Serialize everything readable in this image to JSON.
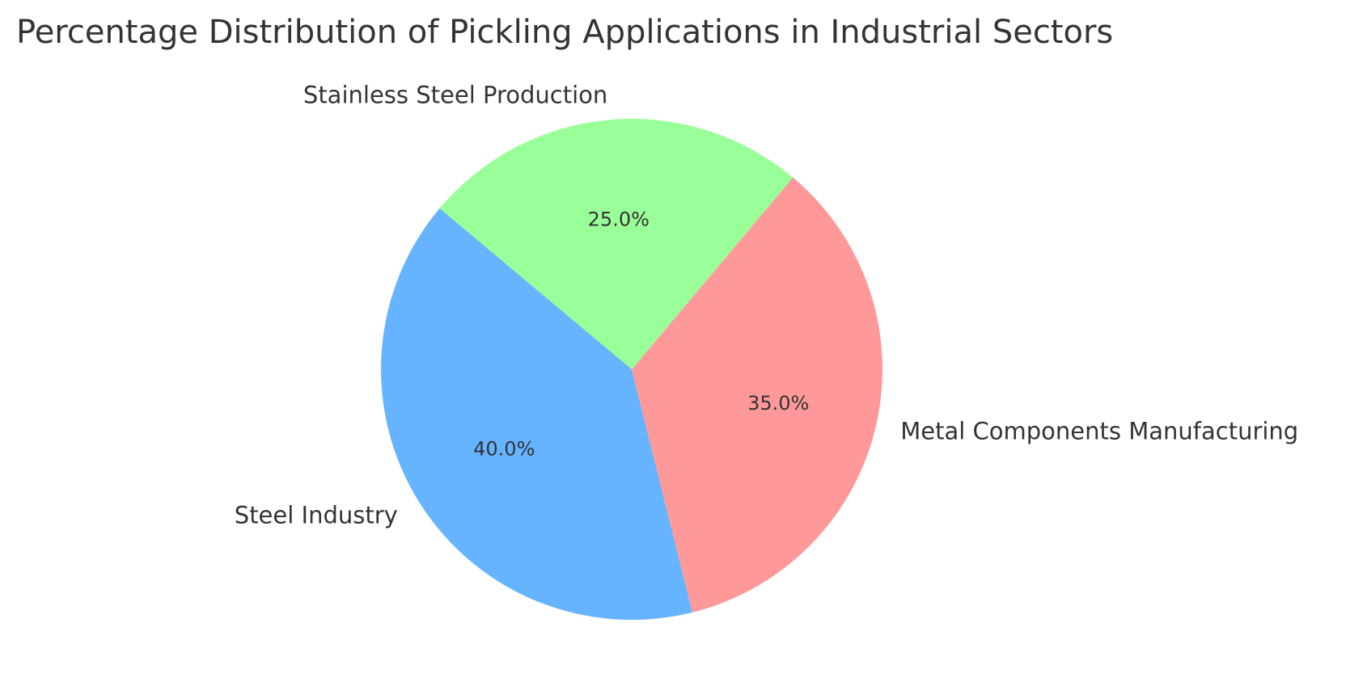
{
  "chart_data": {
    "type": "pie",
    "title": "Percentage Distribution of Pickling Applications in Industrial Sectors",
    "categories": [
      "Steel Industry",
      "Metal Components Manufacturing",
      "Stainless Steel Production"
    ],
    "values": [
      40.0,
      35.0,
      25.0
    ],
    "percent_labels": [
      "40.0%",
      "35.0%",
      "25.0%"
    ],
    "colors": [
      "#66b3ff",
      "#ff9999",
      "#99ff99"
    ],
    "start_angle_deg": 140,
    "direction": "counterclockwise",
    "legend": "none"
  }
}
